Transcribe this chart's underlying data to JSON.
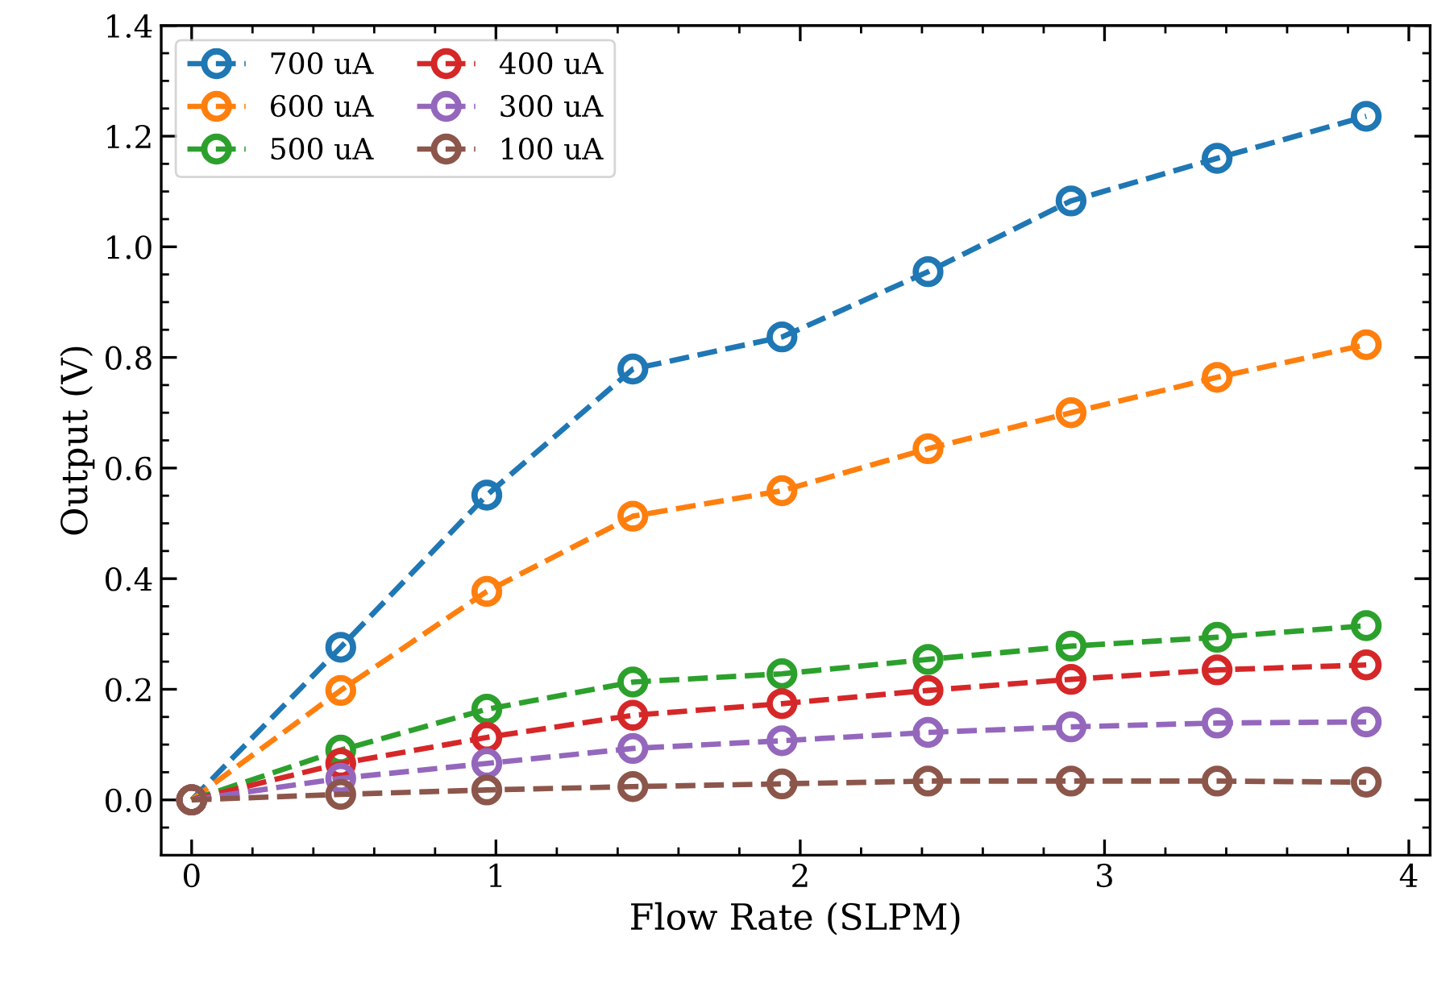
{
  "chart_data": {
    "type": "line",
    "xlabel": "Flow Rate (SLPM)",
    "ylabel": "Output (V)",
    "x": [
      0,
      0.49,
      0.97,
      1.45,
      1.94,
      2.42,
      2.89,
      3.37,
      3.86
    ],
    "series": [
      {
        "name": "700 uA",
        "color": "#1f77b4",
        "values": [
          0,
          0.276,
          0.551,
          0.779,
          0.837,
          0.955,
          1.083,
          1.16,
          1.236
        ]
      },
      {
        "name": "600 uA",
        "color": "#ff7f0e",
        "values": [
          0,
          0.198,
          0.377,
          0.513,
          0.559,
          0.635,
          0.7,
          0.764,
          0.823
        ]
      },
      {
        "name": "500 uA",
        "color": "#2ca02c",
        "values": [
          0,
          0.09,
          0.164,
          0.213,
          0.228,
          0.254,
          0.278,
          0.294,
          0.315
        ]
      },
      {
        "name": "400 uA",
        "color": "#d62728",
        "values": [
          0,
          0.066,
          0.113,
          0.153,
          0.174,
          0.198,
          0.218,
          0.235,
          0.244
        ]
      },
      {
        "name": "300 uA",
        "color": "#9467bd",
        "values": [
          0,
          0.039,
          0.066,
          0.093,
          0.107,
          0.122,
          0.132,
          0.139,
          0.141
        ]
      },
      {
        "name": "100 uA",
        "color": "#8c564b",
        "values": [
          0,
          0.01,
          0.018,
          0.024,
          0.029,
          0.034,
          0.034,
          0.034,
          0.032
        ]
      }
    ],
    "xlim": [
      -0.1,
      4.07
    ],
    "ylim": [
      -0.1,
      1.4
    ],
    "xticks": [
      0,
      1,
      2,
      3,
      4
    ],
    "yticks": [
      {
        "value": 0,
        "label": "0.0"
      },
      {
        "value": 0.2,
        "label": "0.2"
      },
      {
        "value": 0.4,
        "label": "0.4"
      },
      {
        "value": 0.6,
        "label": "0.6"
      },
      {
        "value": 0.8,
        "label": "0.8"
      },
      {
        "value": 1.0,
        "label": "1.0"
      },
      {
        "value": 1.2,
        "label": "1.2"
      },
      {
        "value": 1.4,
        "label": "1.4"
      }
    ],
    "grid": false,
    "legend": "top left",
    "marker": "circle",
    "line_style": "dashed"
  }
}
